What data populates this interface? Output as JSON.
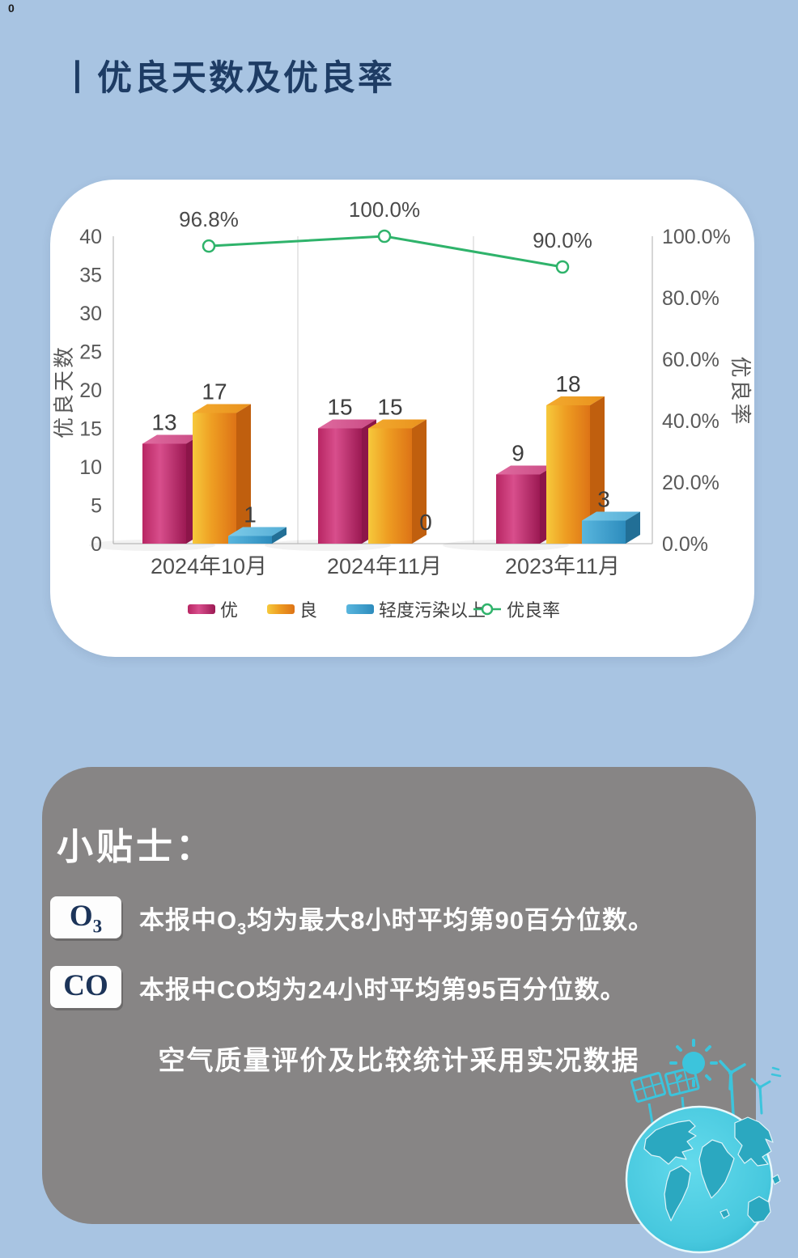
{
  "page": {
    "corner_mark": "0",
    "title": "丨优良天数及优良率"
  },
  "chart_data": {
    "type": "bar",
    "subtype": "3d-bar-with-line-overlay",
    "title": "优良天数及优良率",
    "categories": [
      "2024年10月",
      "2024年11月",
      "2023年11月"
    ],
    "series": [
      {
        "name": "优",
        "type": "bar",
        "values": [
          13,
          15,
          9
        ],
        "color": "#c9256b"
      },
      {
        "name": "良",
        "type": "bar",
        "values": [
          17,
          15,
          18
        ],
        "color": "#e8931f"
      },
      {
        "name": "轻度污染以上",
        "type": "bar",
        "values": [
          1,
          0,
          3
        ],
        "color": "#2f93c6"
      },
      {
        "name": "优良率",
        "type": "line",
        "values": [
          96.8,
          100.0,
          90.0
        ],
        "labels": [
          "96.8%",
          "100.0%",
          "90.0%"
        ],
        "color": "#2fb36b"
      }
    ],
    "left_axis": {
      "title": "优良天数",
      "min": 0,
      "max": 40,
      "ticks": [
        "0",
        "5",
        "10",
        "15",
        "20",
        "25",
        "30",
        "35",
        "40"
      ]
    },
    "right_axis": {
      "title": "优良率",
      "min": 0,
      "max": 100,
      "ticks": [
        "0.0%",
        "20.0%",
        "40.0%",
        "60.0%",
        "80.0%",
        "100.0%"
      ]
    },
    "legend": [
      "优",
      "良",
      "轻度污染以上",
      "优良率"
    ],
    "legend_position": "bottom",
    "grid": "vertical-separators-only"
  },
  "tips": {
    "heading": "小贴士：",
    "items": [
      {
        "badge_main": "O",
        "badge_sub": "3",
        "text_prefix": "本报中O",
        "text_sub": "3",
        "text_suffix": "均为最大8小时平均第90百分位数。"
      },
      {
        "badge_main": "CO",
        "badge_sub": "",
        "text_prefix": "本报中CO均为24小时平均第95百分位数。",
        "text_sub": "",
        "text_suffix": ""
      }
    ],
    "footer": "空气质量评价及比较统计采用实况数据"
  },
  "illustration": {
    "theme_color": "#3cc4dc",
    "continent_color": "#2ba8c0"
  }
}
